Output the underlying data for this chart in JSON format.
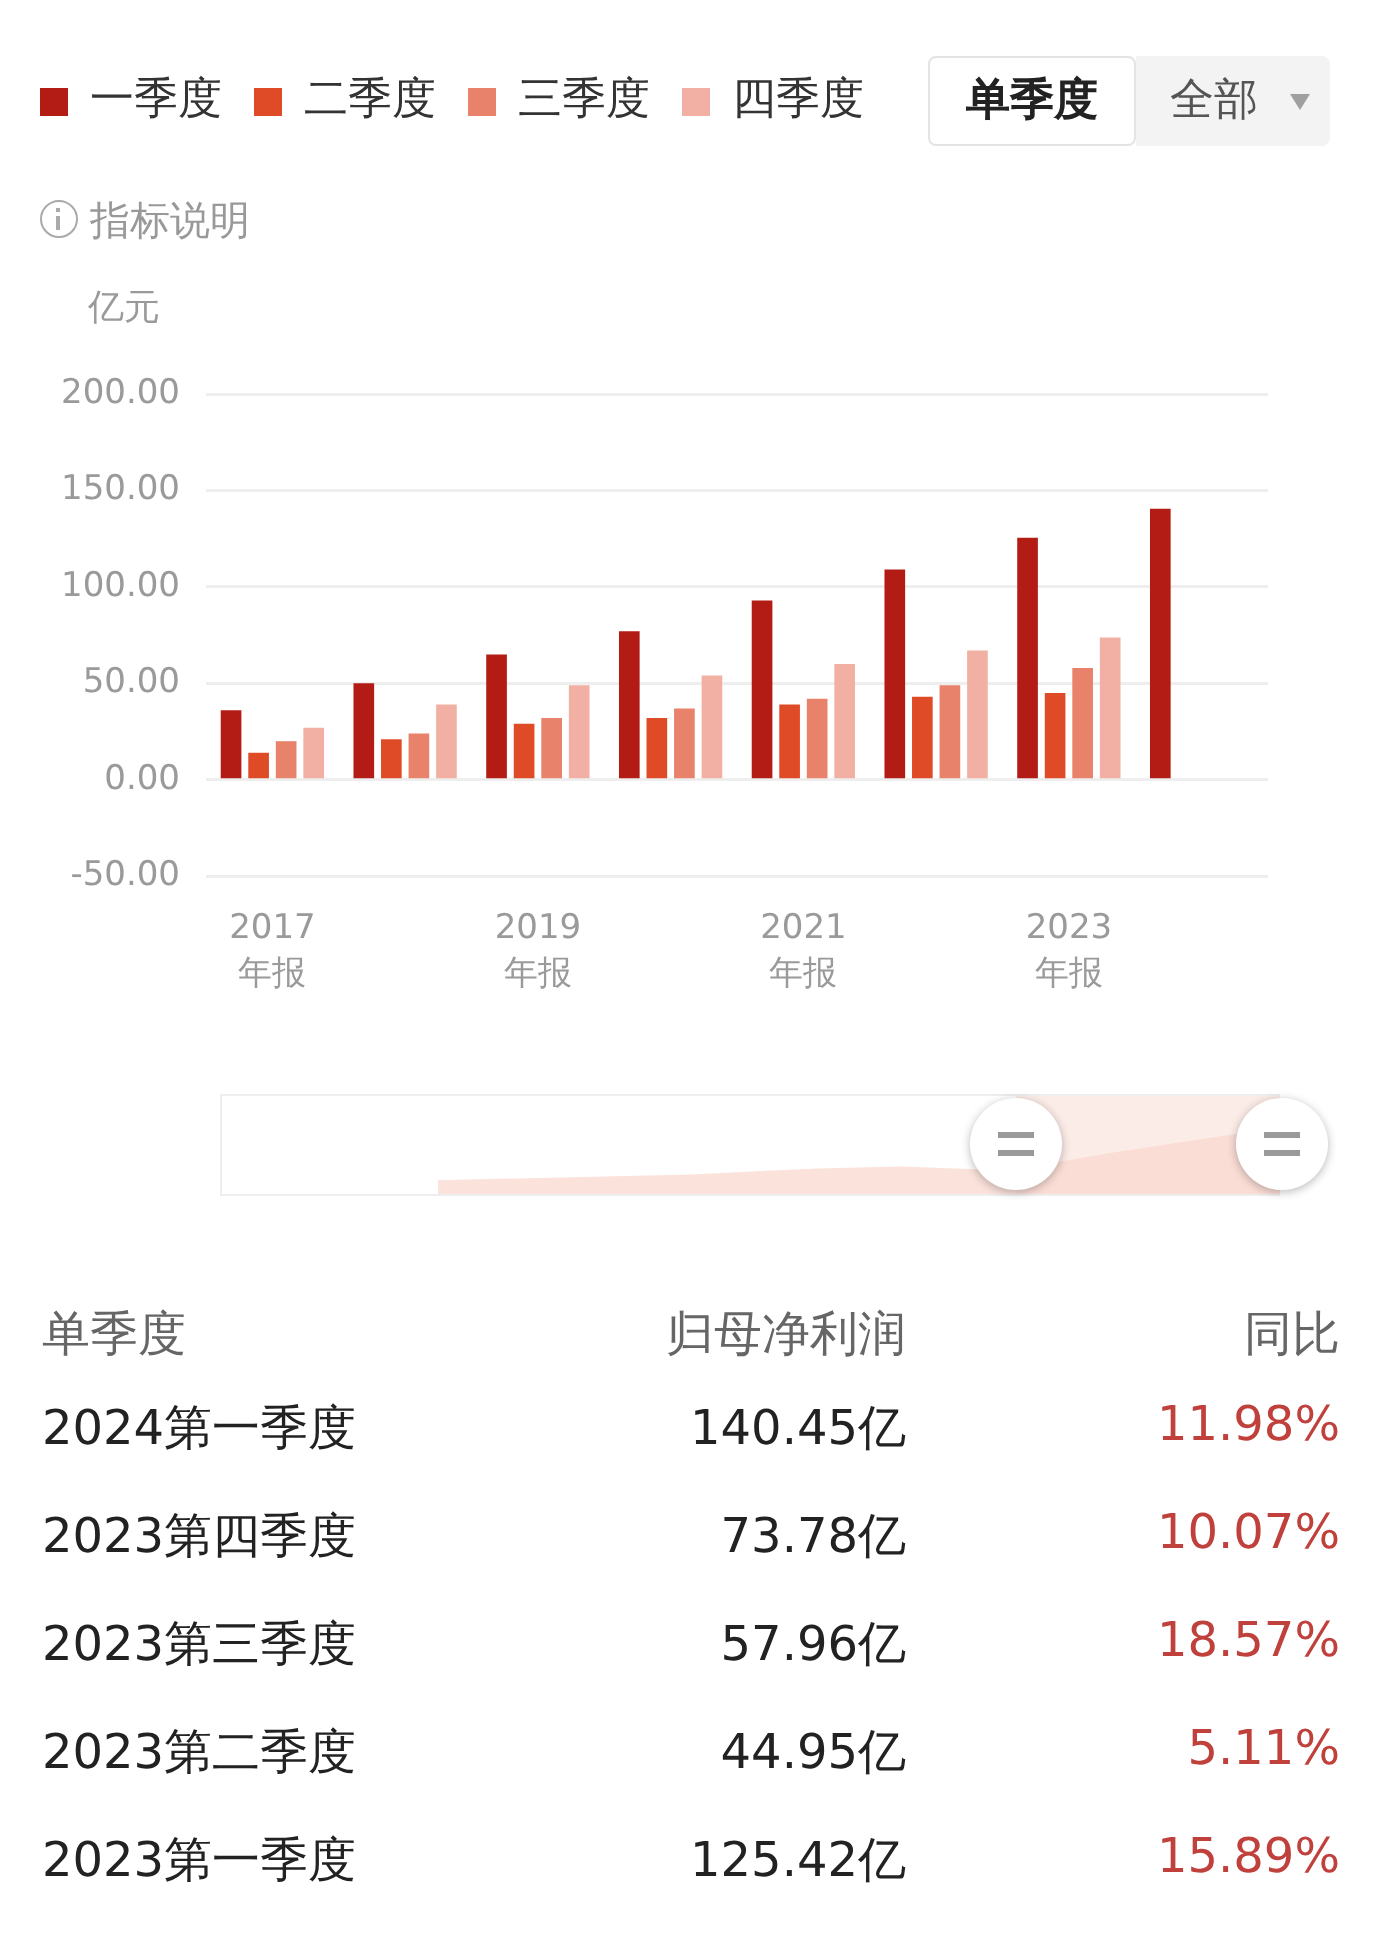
{
  "chart_data": [
    {
      "type": "bar",
      "ylabel": "亿元",
      "categories": [
        "2017\n年报",
        null,
        "2019\n年报",
        null,
        "2021\n年报",
        null,
        "2023\n年报",
        null
      ],
      "series": [
        {
          "name": "一季度",
          "color": "#b31c15",
          "values": [
            36,
            50,
            65,
            77,
            93,
            109,
            125.42,
            140.45
          ]
        },
        {
          "name": "二季度",
          "color": "#e04b27",
          "values": [
            14,
            21,
            29,
            32,
            39,
            43,
            44.95,
            null
          ]
        },
        {
          "name": "三季度",
          "color": "#e8826a",
          "values": [
            20,
            24,
            32,
            37,
            42,
            49,
            57.96,
            null
          ]
        },
        {
          "name": "四季度",
          "color": "#f1b0a3",
          "values": [
            27,
            39,
            49,
            54,
            60,
            67,
            73.78,
            null
          ]
        }
      ],
      "ylim": [
        -50,
        200
      ],
      "yticks": [
        {
          "value": -50,
          "label": "-50.00"
        },
        {
          "value": 0,
          "label": "0.00"
        },
        {
          "value": 50,
          "label": "50.00"
        },
        {
          "value": 100,
          "label": "100.00"
        },
        {
          "value": 150,
          "label": "150.00"
        },
        {
          "value": 200,
          "label": "200.00"
        }
      ],
      "grid": "y",
      "legend": "top left",
      "annotations": [
        "单季度",
        "全部",
        "指标说明"
      ]
    },
    {
      "type": "other",
      "annotations": [
        "单季度",
        "归母净利润",
        "同比",
        "2024第一季度",
        "140.45亿",
        "11.98%",
        "2023第四季度",
        "73.78亿",
        "10.07%",
        "2023第三季度",
        "57.96亿",
        "18.57%",
        "2023第二季度",
        "44.95亿",
        "5.11%",
        "2023第一季度",
        "125.42亿",
        "15.89%"
      ]
    }
  ]
}
